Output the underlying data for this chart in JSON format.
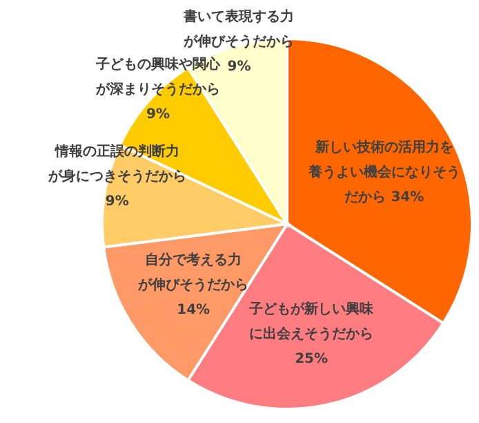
{
  "chart_data": {
    "type": "pie",
    "categories": [
      "新しい技術の活用力を養うよい機会になりそうだから",
      "子どもが新しい興味に出会えそうだから",
      "自分で考える力が伸びそうだから",
      "情報の正誤の判断力が身につきそうだから",
      "子どもの興味や関心が深まりそうだから",
      "書いて表現する力が伸びそうだから"
    ],
    "values": [
      34,
      25,
      14,
      9,
      9,
      9
    ],
    "value_labels": [
      "34%",
      "25%",
      "14%",
      "9%",
      "9%",
      "9%"
    ],
    "colors": [
      "#ff6600",
      "#ff7c80",
      "#ff9966",
      "#ffcc66",
      "#ffcc00",
      "#ffffcc"
    ]
  }
}
